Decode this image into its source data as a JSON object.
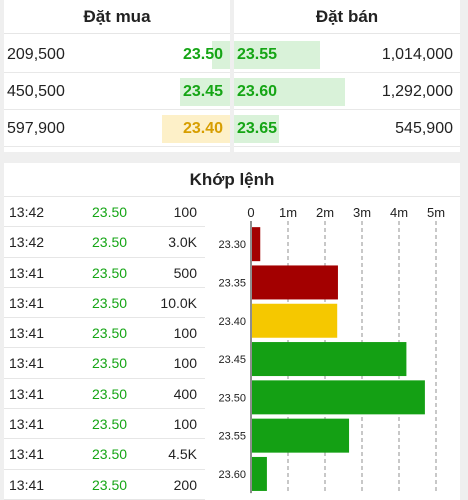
{
  "orderbook": {
    "bid_title": "Đặt mua",
    "ask_title": "Đặt bán",
    "bids": [
      {
        "volume": "209,500",
        "price": "23.50",
        "depth": 0.08,
        "color": "green"
      },
      {
        "volume": "450,500",
        "price": "23.45",
        "depth": 0.22,
        "color": "green"
      },
      {
        "volume": "597,900",
        "price": "23.40",
        "depth": 0.3,
        "color": "ref"
      }
    ],
    "asks": [
      {
        "price": "23.55",
        "volume": "1,014,000",
        "depth": 0.38
      },
      {
        "price": "23.60",
        "volume": "1,292,000",
        "depth": 0.49
      },
      {
        "price": "23.65",
        "volume": "545,900",
        "depth": 0.2
      }
    ]
  },
  "matches": {
    "title": "Khớp lệnh",
    "rows": [
      {
        "time": "13:42",
        "price": "23.50",
        "volume": "100"
      },
      {
        "time": "13:42",
        "price": "23.50",
        "volume": "3.0K"
      },
      {
        "time": "13:41",
        "price": "23.50",
        "volume": "500"
      },
      {
        "time": "13:41",
        "price": "23.50",
        "volume": "10.0K"
      },
      {
        "time": "13:41",
        "price": "23.50",
        "volume": "100"
      },
      {
        "time": "13:41",
        "price": "23.50",
        "volume": "100"
      },
      {
        "time": "13:41",
        "price": "23.50",
        "volume": "400"
      },
      {
        "time": "13:41",
        "price": "23.50",
        "volume": "100"
      },
      {
        "time": "13:41",
        "price": "23.50",
        "volume": "4.5K"
      },
      {
        "time": "13:41",
        "price": "23.50",
        "volume": "200"
      }
    ]
  },
  "colors": {
    "up": "#14a014",
    "down": "#a30000",
    "ref": "#f5c800",
    "bid_depth": "#d9f2d9",
    "ref_bg": "#fdf0c8"
  },
  "chart_data": {
    "type": "bar",
    "orientation": "horizontal",
    "x_ticks": [
      "0",
      "1m",
      "2m",
      "3m",
      "4m",
      "5m"
    ],
    "xlim": [
      0,
      5000000
    ],
    "categories": [
      "23.30",
      "23.35",
      "23.40",
      "23.45",
      "23.50",
      "23.55",
      "23.60"
    ],
    "values": [
      250000,
      2350000,
      2330000,
      4200000,
      4700000,
      2650000,
      430000
    ],
    "bar_colors": [
      "#a30000",
      "#a30000",
      "#f5c800",
      "#14a014",
      "#14a014",
      "#14a014",
      "#14a014"
    ],
    "grid": "vertical dashed"
  }
}
